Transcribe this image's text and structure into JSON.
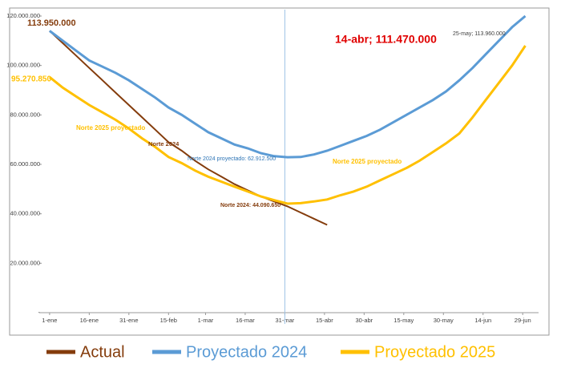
{
  "chart_data": {
    "type": "line",
    "x": [
      0,
      5,
      10,
      15,
      20,
      25,
      30,
      35,
      40,
      45,
      50,
      55,
      60,
      65,
      70,
      75,
      80,
      85,
      90,
      95,
      100,
      105,
      110,
      115,
      120,
      125,
      130,
      135,
      140,
      145,
      150,
      155,
      160,
      165,
      170,
      175,
      180
    ],
    "xlim": [
      -3,
      185
    ],
    "xticks": [
      {
        "value": 0,
        "label": "1-ene"
      },
      {
        "value": 15,
        "label": "16-ene"
      },
      {
        "value": 30,
        "label": "31-ene"
      },
      {
        "value": 45,
        "label": "15-feb"
      },
      {
        "value": 59,
        "label": "1-mar"
      },
      {
        "value": 74,
        "label": "16-mar"
      },
      {
        "value": 89,
        "label": "31-mar"
      },
      {
        "value": 104,
        "label": "15-abr"
      },
      {
        "value": 119,
        "label": "30-abr"
      },
      {
        "value": 134,
        "label": "15-may"
      },
      {
        "value": 149,
        "label": "30-may"
      },
      {
        "value": 164,
        "label": "14-jun"
      },
      {
        "value": 179,
        "label": "29-jun"
      }
    ],
    "ylim": [
      0,
      120000000
    ],
    "yticks": [
      {
        "value": 0,
        "label": "-"
      },
      {
        "value": 20000000,
        "label": "20.000.000"
      },
      {
        "value": 40000000,
        "label": "40.000.000"
      },
      {
        "value": 60000000,
        "label": "60.000.000"
      },
      {
        "value": 80000000,
        "label": "80.000.000"
      },
      {
        "value": 100000000,
        "label": "100.000.000"
      },
      {
        "value": 120000000,
        "label": "120.000.000"
      }
    ],
    "vline": 89,
    "series": [
      {
        "name": "Actual",
        "color": "#843c0c",
        "values": [
          114000000,
          109000000,
          104000000,
          99000000,
          94000000,
          89000000,
          84000000,
          79000000,
          74000000,
          69000000,
          65500000,
          61500000,
          58000000,
          55000000,
          52000000,
          49500000,
          47000000,
          45000000,
          43000000,
          40500000,
          38000000,
          35500000,
          null,
          null,
          null,
          null,
          null,
          null,
          null,
          null,
          null,
          null,
          null,
          null,
          null,
          null,
          null
        ]
      },
      {
        "name": "Proyectado 2024",
        "color": "#5b9bd5",
        "values": [
          114000000,
          110000000,
          106000000,
          102000000,
          99500000,
          97000000,
          94000000,
          90500000,
          87000000,
          83000000,
          80000000,
          76500000,
          73000000,
          70500000,
          68000000,
          66500000,
          64500000,
          63300000,
          62900000,
          63000000,
          64000000,
          65500000,
          67500000,
          69500000,
          71500000,
          74000000,
          77000000,
          80000000,
          83000000,
          86000000,
          89500000,
          94000000,
          99000000,
          104500000,
          110000000,
          115500000,
          120000000
        ]
      },
      {
        "name": "Proyectado 2025",
        "color": "#ffc000",
        "values": [
          95300000,
          91000000,
          87500000,
          84000000,
          81000000,
          78000000,
          74500000,
          70500000,
          67000000,
          63000000,
          60500000,
          57500000,
          55000000,
          53000000,
          51000000,
          49000000,
          47000000,
          45500000,
          44100000,
          44300000,
          45000000,
          45800000,
          47500000,
          49000000,
          51000000,
          53500000,
          56000000,
          58500000,
          61500000,
          65000000,
          68500000,
          72500000,
          79000000,
          86000000,
          93000000,
          100000000,
          108000000
        ]
      }
    ],
    "annotations": [
      {
        "text": "113.950.000",
        "color": "#843c0c"
      },
      {
        "text": "95.270.850",
        "color": "#ffc000"
      },
      {
        "text": "Norte 2025 proyectado",
        "color": "#ffc000"
      },
      {
        "text": "Norte 2024",
        "color": "#843c0c"
      },
      {
        "text": "Norte 2024 proyectado: 62.912.500",
        "color": "#2e75b6"
      },
      {
        "text": "Norte 2025 proyectado",
        "color": "#ffc000"
      },
      {
        "text": "Norte 2024: 44.090.650",
        "color": "#843c0c"
      },
      {
        "text": "14-abr; 111.470.000",
        "color": "#e00000"
      },
      {
        "text": "25-may; 113.960.000",
        "color": "#404040"
      }
    ]
  }
}
